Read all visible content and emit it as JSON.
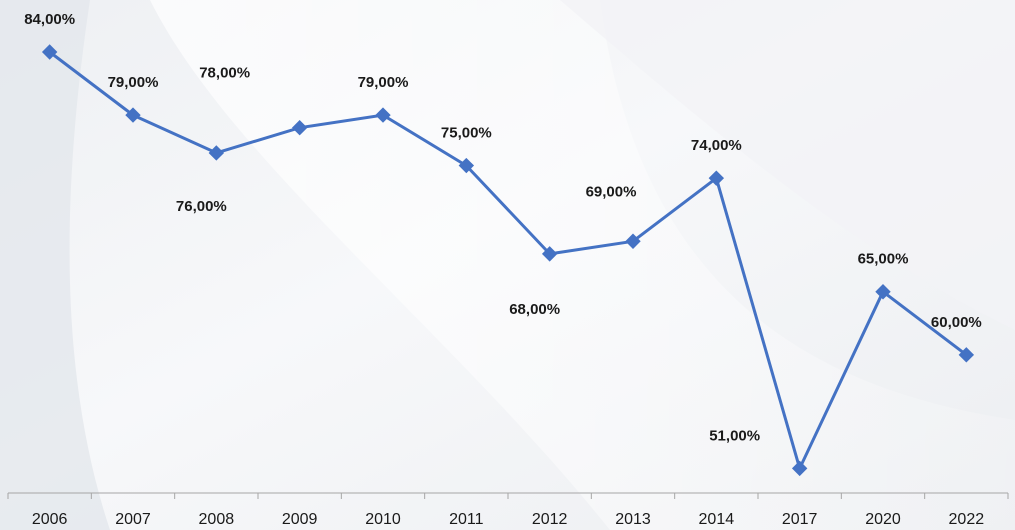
{
  "chart_data": {
    "type": "line",
    "categories": [
      "2006",
      "2007",
      "2008",
      "2009",
      "2010",
      "2011",
      "2012",
      "2013",
      "2014",
      "2017",
      "2020",
      "2022"
    ],
    "series": [
      {
        "values": [
          84,
          79,
          76,
          78,
          79,
          75,
          68,
          69,
          74,
          51,
          65,
          60
        ],
        "color": "#4472c4",
        "marker": "diamond"
      }
    ],
    "data_labels": [
      "84,00%",
      "79,00%",
      "76,00%",
      "78,00%",
      "79,00%",
      "75,00%",
      "68,00%",
      "69,00%",
      "74,00%",
      "51,00%",
      "65,00%",
      "60,00%"
    ],
    "ylim": [
      50,
      84
    ],
    "grid": false,
    "legend": "none",
    "title": "",
    "xlabel": "",
    "ylabel": ""
  }
}
